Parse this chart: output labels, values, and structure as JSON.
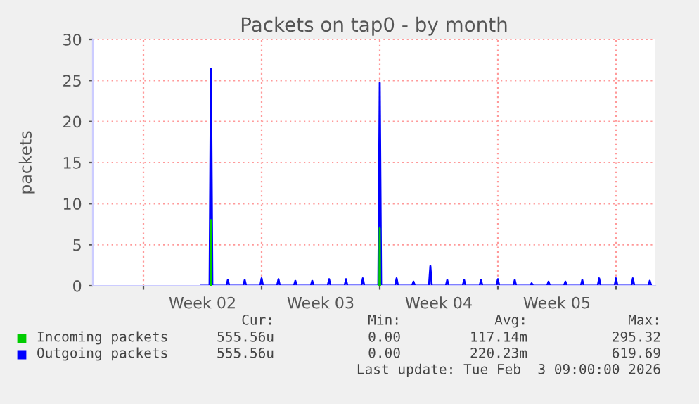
{
  "chart_data": {
    "type": "line",
    "title": "Packets on tap0 - by month",
    "ylabel": "packets",
    "xlim": [
      "2026-01-02",
      "2026-02-04T08:00"
    ],
    "xticks": [
      {
        "value": "2026-01-05",
        "label": null
      },
      {
        "value": "2026-01-08T12:00",
        "label": "Week 02"
      },
      {
        "value": "2026-01-12",
        "label": null
      },
      {
        "value": "2026-01-15T12:00",
        "label": "Week 03"
      },
      {
        "value": "2026-01-19",
        "label": null
      },
      {
        "value": "2026-01-22T12:00",
        "label": "Week 04"
      },
      {
        "value": "2026-01-26",
        "label": null
      },
      {
        "value": "2026-01-29T12:00",
        "label": "Week 05"
      },
      {
        "value": "2026-02-02",
        "label": null
      }
    ],
    "ylim": [
      0,
      30
    ],
    "yticks": [
      0,
      5,
      10,
      15,
      20,
      25,
      30
    ],
    "grid": true,
    "legend": "bottom left",
    "x": [
      "2026-01-08T10:00",
      "2026-01-08T22:00",
      "2026-01-09",
      "2026-01-09T02:00",
      "2026-01-09T22:00",
      "2026-01-10",
      "2026-01-10T02:00",
      "2026-01-10T22:00",
      "2026-01-11",
      "2026-01-11T02:00",
      "2026-01-11T22:00",
      "2026-01-12",
      "2026-01-12T02:00",
      "2026-01-12T22:00",
      "2026-01-13",
      "2026-01-13T02:00",
      "2026-01-13T22:00",
      "2026-01-14",
      "2026-01-14T02:00",
      "2026-01-14T22:00",
      "2026-01-15",
      "2026-01-15T02:00",
      "2026-01-15T22:00",
      "2026-01-16",
      "2026-01-16T02:00",
      "2026-01-16T22:00",
      "2026-01-17",
      "2026-01-17T02:00",
      "2026-01-17T22:00",
      "2026-01-18",
      "2026-01-18T02:00",
      "2026-01-18T22:00",
      "2026-01-19",
      "2026-01-19T02:00",
      "2026-01-19T22:00",
      "2026-01-20",
      "2026-01-20T02:00",
      "2026-01-20T22:00",
      "2026-01-21",
      "2026-01-21T02:00",
      "2026-01-21T22:00",
      "2026-01-22",
      "2026-01-22T02:00",
      "2026-01-22T22:00",
      "2026-01-23",
      "2026-01-23T02:00",
      "2026-01-23T22:00",
      "2026-01-24",
      "2026-01-24T02:00",
      "2026-01-24T22:00",
      "2026-01-25",
      "2026-01-25T02:00",
      "2026-01-25T22:00",
      "2026-01-26",
      "2026-01-26T02:00",
      "2026-01-26T22:00",
      "2026-01-27",
      "2026-01-27T02:00",
      "2026-01-27T22:00",
      "2026-01-28",
      "2026-01-28T02:00",
      "2026-01-28T22:00",
      "2026-01-29",
      "2026-01-29T02:00",
      "2026-01-29T22:00",
      "2026-01-30",
      "2026-01-30T02:00",
      "2026-01-30T22:00",
      "2026-01-31",
      "2026-01-31T02:00",
      "2026-01-31T22:00",
      "2026-02-01",
      "2026-02-01T02:00",
      "2026-02-01T22:00",
      "2026-02-02",
      "2026-02-02T02:00",
      "2026-02-02T22:00",
      "2026-02-03",
      "2026-02-03T02:00",
      "2026-02-03T22:00",
      "2026-02-04",
      "2026-02-04T02:00"
    ],
    "series": [
      {
        "name": "Incoming packets",
        "color": "#00cc00",
        "x": [
          "2026-01-08T23:30",
          "2026-01-09",
          "2026-01-09T00:30",
          "2026-01-12",
          "2026-01-18T23:30",
          "2026-01-19",
          "2026-01-19T00:30"
        ],
        "values": [
          0,
          8,
          0,
          null,
          0,
          7,
          0
        ]
      },
      {
        "name": "Outgoing packets",
        "color": "#0000ff",
        "values": [
          0,
          0,
          26.4,
          0,
          0,
          0.7,
          0,
          0,
          0.7,
          0,
          0,
          0.9,
          0,
          0,
          0.8,
          0,
          0,
          0.6,
          0,
          0,
          0.6,
          0,
          0,
          0.8,
          0,
          0,
          0.8,
          0,
          0,
          0.9,
          0,
          0,
          24.7,
          0,
          0,
          0.9,
          0,
          0,
          0.5,
          0,
          0,
          2.4,
          0,
          0,
          0.7,
          0,
          0,
          0.7,
          0,
          0,
          0.7,
          0,
          0,
          0.8,
          0,
          0,
          0.7,
          0,
          0,
          0.3,
          0,
          0,
          0.5,
          0,
          0,
          0.5,
          0,
          0,
          0.7,
          0,
          0,
          0.9,
          0,
          0,
          0.9,
          0,
          0,
          0.9,
          0,
          0,
          0.6,
          0
        ]
      }
    ],
    "annotations": [
      "Cur:",
      "Min:",
      "Avg:",
      "Max:",
      "555.56u",
      "0.00",
      "117.14m",
      "295.32",
      "555.56u",
      "0.00",
      "220.23m",
      "619.69",
      "Last update: Tue Feb  3 09:00:00 2026"
    ]
  }
}
